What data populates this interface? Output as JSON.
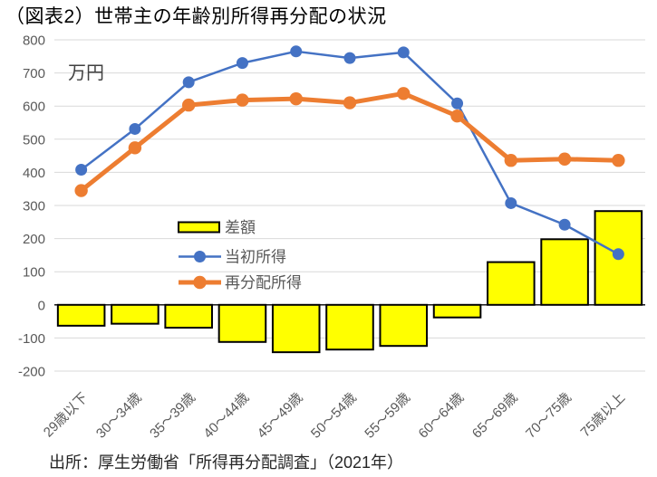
{
  "title": "（図表2）世帯主の年齢別所得再分配の状況",
  "unit_label": "万円",
  "source": "出所：厚生労働省「所得再分配調査」（2021年）",
  "chart_data": {
    "type": "combo",
    "title": "（図表2）世帯主の年齢別所得再分配の状況",
    "ylabel": "万円",
    "categories": [
      "29歳以下",
      "30～34歳",
      "35～39歳",
      "40～44歳",
      "45～49歳",
      "50～54歳",
      "55～59歳",
      "60～64歳",
      "65～69歳",
      "70～75歳",
      "75歳以上"
    ],
    "series": [
      {
        "id": "difference",
        "name": "差額",
        "type": "bar",
        "color": "#FFFF00",
        "border": "#000000",
        "values": [
          -63,
          -57,
          -69,
          -112,
          -143,
          -135,
          -124,
          -38,
          129,
          198,
          283
        ]
      },
      {
        "id": "initial-income",
        "name": "当初所得",
        "type": "line",
        "color": "#4472C4",
        "marker": "circle",
        "values": [
          408,
          531,
          672,
          730,
          765,
          745,
          762,
          608,
          307,
          242,
          153
        ]
      },
      {
        "id": "redistributed-income",
        "name": "再分配所得",
        "type": "line",
        "color": "#ED7D31",
        "marker": "circle",
        "values": [
          345,
          474,
          603,
          618,
          622,
          610,
          638,
          570,
          436,
          440,
          436
        ]
      }
    ],
    "ylim": [
      -200,
      800
    ],
    "ytick_step": 100,
    "yticks": [
      -200,
      -100,
      0,
      100,
      200,
      300,
      400,
      500,
      600,
      700,
      800
    ],
    "grid": true,
    "legend_position": "inside-center-left",
    "gridline_color": "#D9D9D9",
    "zero_axis_color": "#000000",
    "axis_label_color": "#595959"
  }
}
